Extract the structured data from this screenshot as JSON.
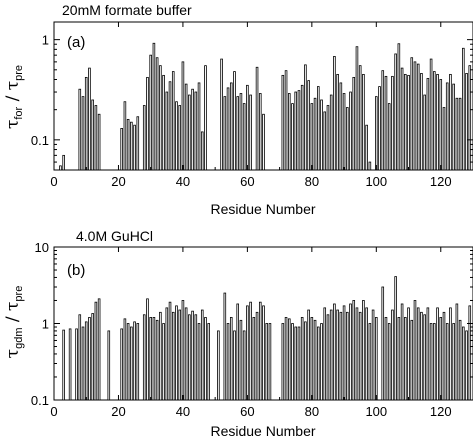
{
  "chart_data": [
    {
      "type": "bar",
      "panel_title": "20mM formate buffer",
      "panel_tag": "(a)",
      "xlabel": "Residue Number",
      "ylabel": {
        "base": "τ",
        "num_sub": "for",
        "sep": " / ",
        "den_base": "τ",
        "den_sub": "pre"
      },
      "yscale": "log",
      "ylim": [
        0.05,
        1.5
      ],
      "xlim": [
        0,
        130
      ],
      "xticks": [
        0,
        20,
        40,
        60,
        80,
        100,
        120
      ],
      "xtick_labels": [
        "0",
        "20",
        "40",
        "60",
        "80",
        "100",
        "120"
      ],
      "yticks": [
        0.1,
        1
      ],
      "ytick_labels": [
        "0.1",
        "1"
      ],
      "series": [
        {
          "x": [
            2,
            3,
            8,
            9,
            10,
            11,
            12,
            13,
            14,
            21,
            22,
            23,
            24,
            25,
            26,
            28,
            29,
            30,
            31,
            32,
            33,
            34,
            35,
            36,
            37,
            38,
            39,
            40,
            41,
            42,
            43,
            44,
            45,
            46,
            47,
            52,
            53,
            54,
            55,
            56,
            57,
            58,
            59,
            60,
            61,
            63,
            64,
            65,
            71,
            72,
            73,
            74,
            75,
            76,
            77,
            78,
            79,
            80,
            81,
            82,
            83,
            84,
            85,
            86,
            87,
            88,
            89,
            90,
            91,
            92,
            93,
            94,
            95,
            96,
            97,
            98,
            100,
            101,
            102,
            103,
            104,
            105,
            106,
            107,
            108,
            109,
            110,
            111,
            112,
            113,
            114,
            115,
            116,
            117,
            118,
            119,
            120,
            121,
            122,
            123,
            124,
            125,
            126,
            127,
            128,
            129
          ],
          "values": [
            0.055,
            0.07,
            0.32,
            0.27,
            0.42,
            0.52,
            0.25,
            0.22,
            0.18,
            0.13,
            0.24,
            0.16,
            0.15,
            0.14,
            0.17,
            0.22,
            0.42,
            0.7,
            0.92,
            0.66,
            0.55,
            0.44,
            0.3,
            0.38,
            0.48,
            0.24,
            0.22,
            0.6,
            0.36,
            0.28,
            0.32,
            0.3,
            0.37,
            0.12,
            0.55,
            0.64,
            0.27,
            0.33,
            0.37,
            0.48,
            0.27,
            0.29,
            0.23,
            0.35,
            0.28,
            0.53,
            0.29,
            0.18,
            0.44,
            0.49,
            0.29,
            0.23,
            0.3,
            0.31,
            0.35,
            0.56,
            0.39,
            0.23,
            0.26,
            0.34,
            0.25,
            0.19,
            0.22,
            0.28,
            0.68,
            0.45,
            0.37,
            0.29,
            0.21,
            0.3,
            0.42,
            0.85,
            0.55,
            0.45,
            0.14,
            0.06,
            0.27,
            0.34,
            0.49,
            0.43,
            0.23,
            0.43,
            0.72,
            0.91,
            0.52,
            0.45,
            0.44,
            0.66,
            0.6,
            0.57,
            0.46,
            0.28,
            0.41,
            0.64,
            0.48,
            0.45,
            0.4,
            0.21,
            0.37,
            0.45,
            0.36,
            0.26,
            0.26,
            0.82,
            0.46,
            0.55
          ]
        }
      ]
    },
    {
      "type": "bar",
      "panel_title": "4.0M GuHCl",
      "panel_tag": "(b)",
      "xlabel": "Residue Number",
      "ylabel": {
        "base": "τ",
        "num_sub": "gdm",
        "sep": " / ",
        "den_base": "τ",
        "den_sub": "pre"
      },
      "yscale": "log",
      "ylim": [
        0.1,
        10
      ],
      "xlim": [
        0,
        130
      ],
      "xticks": [
        0,
        20,
        40,
        60,
        80,
        100,
        120
      ],
      "xtick_labels": [
        "0",
        "20",
        "40",
        "60",
        "80",
        "100",
        "120"
      ],
      "yticks": [
        0.1,
        1,
        10
      ],
      "ytick_labels": [
        "0.1",
        "1",
        "10"
      ],
      "series": [
        {
          "x": [
            3,
            5,
            7,
            8,
            9,
            10,
            11,
            12,
            13,
            14,
            17,
            21,
            22,
            23,
            24,
            25,
            26,
            28,
            29,
            30,
            31,
            32,
            33,
            34,
            35,
            36,
            37,
            38,
            39,
            40,
            41,
            42,
            43,
            44,
            45,
            46,
            47,
            48,
            51,
            53,
            54,
            55,
            56,
            57,
            58,
            59,
            60,
            61,
            62,
            63,
            64,
            65,
            66,
            67,
            71,
            72,
            73,
            74,
            75,
            76,
            77,
            78,
            79,
            80,
            81,
            82,
            83,
            84,
            85,
            86,
            87,
            88,
            89,
            90,
            91,
            92,
            93,
            94,
            95,
            96,
            97,
            98,
            99,
            100,
            102,
            103,
            104,
            105,
            106,
            107,
            108,
            109,
            110,
            111,
            112,
            113,
            114,
            115,
            116,
            117,
            118,
            119,
            120,
            121,
            122,
            123,
            124,
            125,
            126,
            127,
            128,
            129
          ],
          "values": [
            0.82,
            0.85,
            0.85,
            1.3,
            0.9,
            1.05,
            1.2,
            1.35,
            1.9,
            2.1,
            0.8,
            0.85,
            1.15,
            1.0,
            0.9,
            1.05,
            1.0,
            1.3,
            2.1,
            1.2,
            1.2,
            1.1,
            1.4,
            1.0,
            1.6,
            1.9,
            1.4,
            1.7,
            1.5,
            2.0,
            1.6,
            1.3,
            1.45,
            1.3,
            1.0,
            1.5,
            1.2,
            1.0,
            0.8,
            2.5,
            1.0,
            1.2,
            0.8,
            1.8,
            1.1,
            0.8,
            1.7,
            1.9,
            1.2,
            1.4,
            1.9,
            1.7,
            1.0,
            1.0,
            1.0,
            1.2,
            1.15,
            1.0,
            0.9,
            0.9,
            1.2,
            1.05,
            1.5,
            1.2,
            1.1,
            0.9,
            1.0,
            1.6,
            1.3,
            1.5,
            1.8,
            1.5,
            1.4,
            1.7,
            1.4,
            1.8,
            2.0,
            1.6,
            1.4,
            2.0,
            1.6,
            1.0,
            1.5,
            1.2,
            3.0,
            1.2,
            1.0,
            1.5,
            4.1,
            1.2,
            1.8,
            1.2,
            1.6,
            1.1,
            2.0,
            1.6,
            1.4,
            1.3,
            1.6,
            1.0,
            1.0,
            1.6,
            1.2,
            1.4,
            1.0,
            1.6,
            1.0,
            1.8,
            1.1,
            0.9,
            0.8,
            1.7
          ]
        }
      ]
    }
  ]
}
